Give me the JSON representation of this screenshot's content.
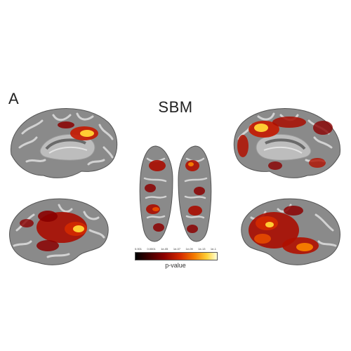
{
  "panel_letter": "A",
  "title": "SBM",
  "colorbar": {
    "ticks": [
      "0.001",
      "0.0001",
      "1e-05",
      "1e-07",
      "1e-09",
      "1e-13",
      "1e-1"
    ],
    "label": "p-value",
    "colors": [
      "#000000",
      "#3a0000",
      "#8a0000",
      "#d42a00",
      "#f47a00",
      "#ffd23a",
      "#ffffd8"
    ]
  },
  "views": [
    {
      "name": "left-medial-view"
    },
    {
      "name": "right-medial-view"
    },
    {
      "name": "left-lateral-view"
    },
    {
      "name": "right-lateral-view"
    },
    {
      "name": "left-ventral-view"
    },
    {
      "name": "right-ventral-view"
    }
  ]
}
